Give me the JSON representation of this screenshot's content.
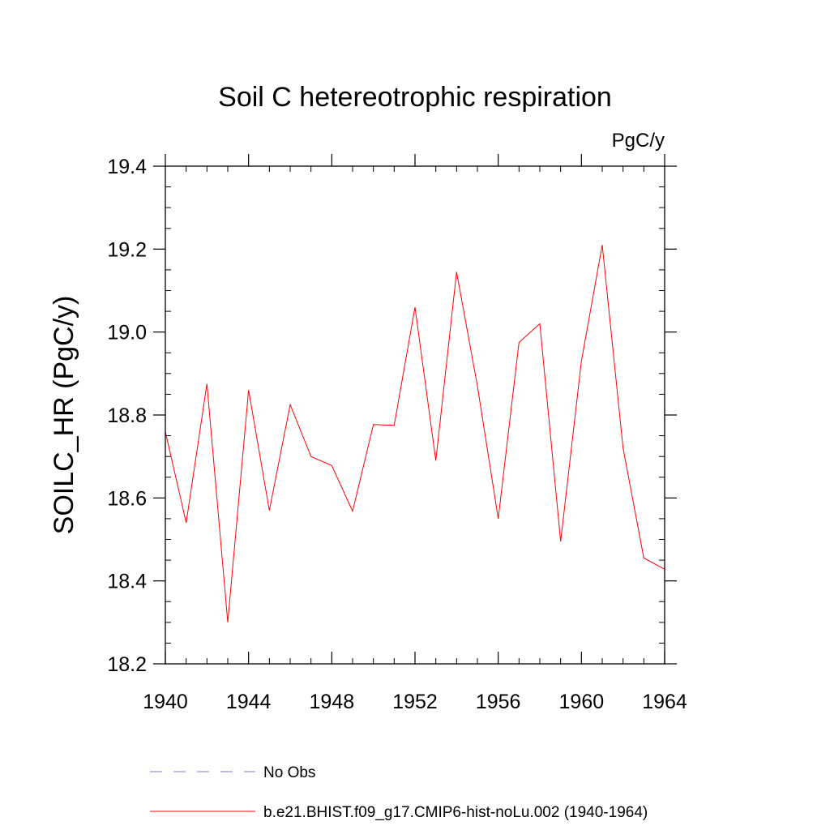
{
  "chart_data": {
    "type": "line",
    "title": "Soil C hetereotrophic respiration",
    "units_label": "PgC/y",
    "ylabel": "SOILC_HR  (PgC/y)",
    "xlabel": "",
    "xlim": [
      1940,
      1964
    ],
    "ylim": [
      18.2,
      19.4
    ],
    "x_ticks": [
      1940,
      1944,
      1948,
      1952,
      1956,
      1960,
      1964
    ],
    "x_tick_labels": [
      "1940",
      "1944",
      "1948",
      "1952",
      "1956",
      "1960",
      "1964"
    ],
    "y_ticks": [
      18.2,
      18.4,
      18.6,
      18.8,
      19.0,
      19.2,
      19.4
    ],
    "y_tick_labels": [
      "18.2",
      "18.4",
      "18.6",
      "18.8",
      "19.0",
      "19.2",
      "19.4"
    ],
    "grid": false,
    "legend_position": "bottom",
    "series": [
      {
        "name": "No Obs",
        "color": "#7b7bd0",
        "dash": "dashed",
        "x": [],
        "y": []
      },
      {
        "name": "b.e21.BHIST.f09_g17.CMIP6-hist-noLu.002 (1940-1964)",
        "color": "#ff0000",
        "dash": "solid",
        "x": [
          1940,
          1941,
          1942,
          1943,
          1944,
          1945,
          1946,
          1947,
          1948,
          1949,
          1950,
          1951,
          1952,
          1953,
          1954,
          1955,
          1956,
          1957,
          1958,
          1959,
          1960,
          1961,
          1962,
          1963,
          1964
        ],
        "y": [
          18.76,
          18.54,
          18.875,
          18.3,
          18.86,
          18.57,
          18.825,
          18.7,
          18.678,
          18.568,
          18.777,
          18.775,
          19.06,
          18.69,
          19.145,
          18.87,
          18.55,
          18.975,
          19.02,
          18.495,
          18.93,
          19.21,
          18.72,
          18.455,
          18.428
        ]
      }
    ]
  }
}
